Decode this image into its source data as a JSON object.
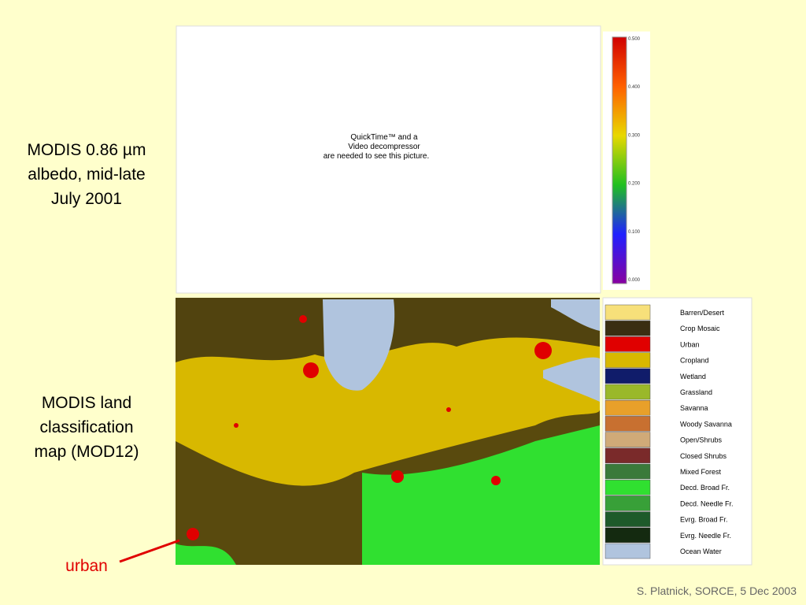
{
  "albedo_caption": [
    "MODIS 0.86 µm",
    "albedo, mid-late",
    "July 2001"
  ],
  "land_caption": [
    "MODIS land",
    "classification",
    "map (MOD12)"
  ],
  "urban_label": "urban",
  "placeholder": [
    "QuickTime™ and a",
    "Video decompressor",
    "are needed to see this picture."
  ],
  "colorbar": {
    "ticks": [
      "0.500",
      "0.400",
      "0.300",
      "0.200",
      "0.100",
      "0.000"
    ]
  },
  "legend": [
    {
      "label": "Barren/Desert",
      "color": "#f7e07a"
    },
    {
      "label": "Crop Mosaic",
      "color": "#3a2e12"
    },
    {
      "label": "Urban",
      "color": "#e00000"
    },
    {
      "label": "Cropland",
      "color": "#d8b800"
    },
    {
      "label": "Wetland",
      "color": "#101c6a"
    },
    {
      "label": "Grassland",
      "color": "#9ab82a"
    },
    {
      "label": "Savanna",
      "color": "#e8a02a"
    },
    {
      "label": "Woody Savanna",
      "color": "#c87030"
    },
    {
      "label": "Open/Shrubs",
      "color": "#d0aa78"
    },
    {
      "label": "Closed Shrubs",
      "color": "#7a2a2a"
    },
    {
      "label": "Mixed Forest",
      "color": "#3a7a3a"
    },
    {
      "label": "Decd. Broad Fr.",
      "color": "#30e030"
    },
    {
      "label": "Decd. Needle Fr.",
      "color": "#38a038"
    },
    {
      "label": "Evrg. Broad Fr.",
      "color": "#1e5a2a"
    },
    {
      "label": "Evrg. Needle Fr.",
      "color": "#142a10"
    },
    {
      "label": "Ocean Water",
      "color": "#b0c4de"
    }
  ],
  "footer": "S. Platnick, SORCE, 5 Dec 2003"
}
